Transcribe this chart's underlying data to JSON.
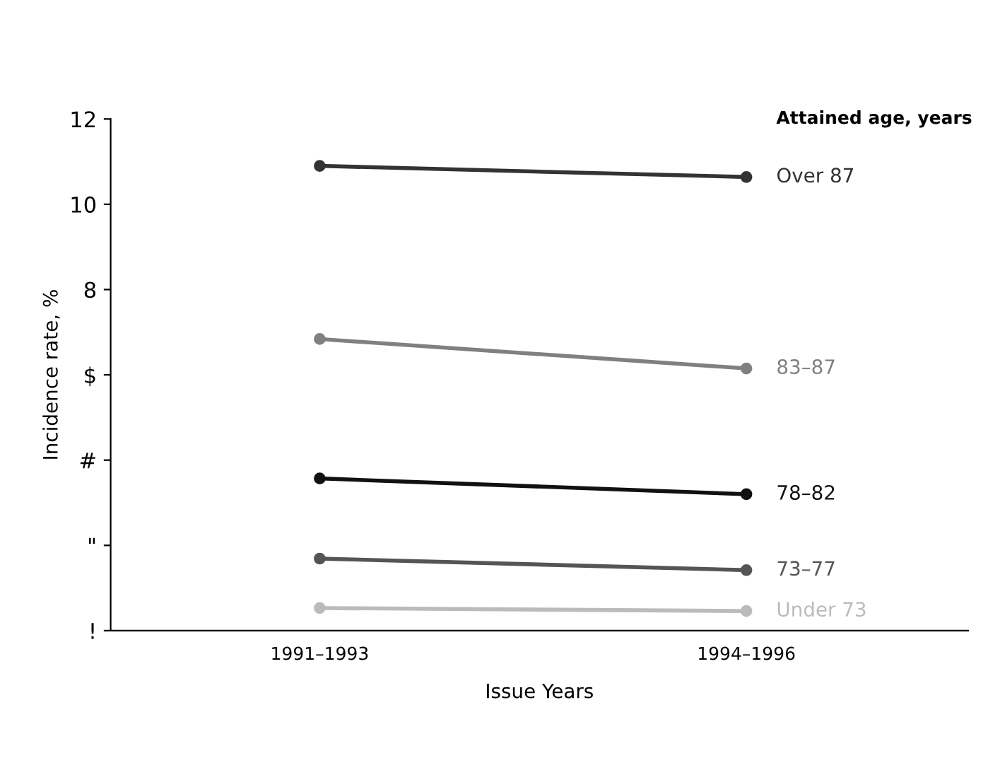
{
  "chart_data": {
    "type": "line",
    "xlabel": "Issue Years",
    "ylabel": "Incidence rate, %",
    "legend_title": "Attained age, years",
    "categories": [
      "1991–1993",
      "1994–1996"
    ],
    "series": [
      {
        "name": "Over 87",
        "color": "#333333",
        "values": [
          10.9,
          10.64
        ]
      },
      {
        "name": "83–87",
        "color": "#808080",
        "values": [
          6.84,
          6.15
        ]
      },
      {
        "name": "78–82",
        "color": "#111111",
        "values": [
          3.57,
          3.2
        ]
      },
      {
        "name": "73–77",
        "color": "#555555",
        "values": [
          1.69,
          1.42
        ]
      },
      {
        "name": "Under 73",
        "color": "#bbbbbb",
        "values": [
          0.53,
          0.46
        ]
      }
    ],
    "ylim": [
      0,
      12
    ],
    "yticks": [
      {
        "value": 0,
        "label": "!"
      },
      {
        "value": 2,
        "label": "\""
      },
      {
        "value": 4,
        "label": "#"
      },
      {
        "value": 6,
        "label": "$"
      },
      8,
      10,
      12
    ],
    "marker": "circle",
    "line_style": "solid",
    "grid": false,
    "legend": false
  }
}
